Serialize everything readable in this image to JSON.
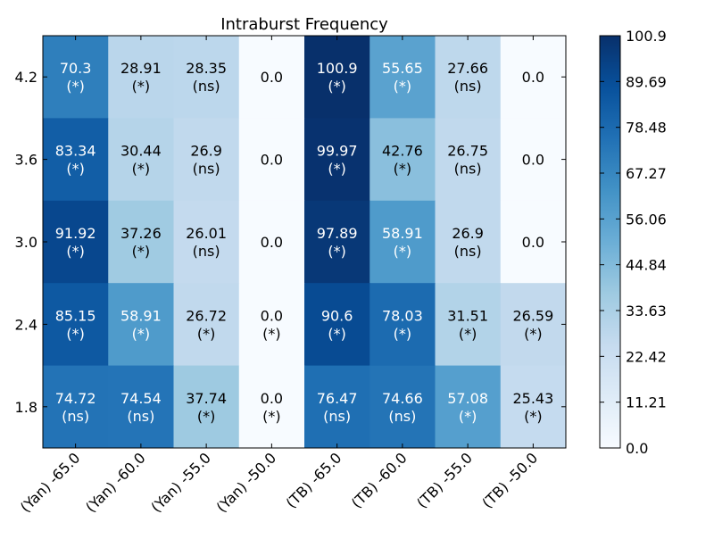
{
  "chart_data": {
    "type": "heatmap",
    "title": "Intraburst Frequency",
    "xlabel": "",
    "ylabel": "",
    "x_categories": [
      "(Yan) -65.0",
      "(Yan) -60.0",
      "(Yan) -55.0",
      "(Yan) -50.0",
      "(TB) -65.0",
      "(TB) -60.0",
      "(TB) -55.0",
      "(TB) -50.0"
    ],
    "y_categories": [
      "4.2",
      "3.6",
      "3.0",
      "2.4",
      "1.8"
    ],
    "values": [
      [
        70.3,
        28.91,
        28.35,
        0.0,
        100.9,
        55.65,
        27.66,
        0.0
      ],
      [
        83.34,
        30.44,
        26.9,
        0.0,
        99.97,
        42.76,
        26.75,
        0.0
      ],
      [
        91.92,
        37.26,
        26.01,
        0.0,
        97.89,
        58.91,
        26.9,
        0.0
      ],
      [
        85.15,
        58.91,
        26.72,
        0.0,
        90.6,
        78.03,
        31.51,
        26.59
      ],
      [
        74.72,
        74.54,
        37.74,
        0.0,
        76.47,
        74.66,
        57.08,
        25.43
      ]
    ],
    "cell_value_labels": [
      [
        "70.3",
        "28.91",
        "28.35",
        "0.0",
        "100.9",
        "55.65",
        "27.66",
        "0.0"
      ],
      [
        "83.34",
        "30.44",
        "26.9",
        "0.0",
        "99.97",
        "42.76",
        "26.75",
        "0.0"
      ],
      [
        "91.92",
        "37.26",
        "26.01",
        "0.0",
        "97.89",
        "58.91",
        "26.9",
        "0.0"
      ],
      [
        "85.15",
        "58.91",
        "26.72",
        "0.0",
        "90.6",
        "78.03",
        "31.51",
        "26.59"
      ],
      [
        "74.72",
        "74.54",
        "37.74",
        "0.0",
        "76.47",
        "74.66",
        "57.08",
        "25.43"
      ]
    ],
    "significance": [
      [
        "(*)",
        "(*)",
        "(ns)",
        "",
        "(*)",
        "(*)",
        "(ns)",
        ""
      ],
      [
        "(*)",
        "(*)",
        "(ns)",
        "",
        "(*)",
        "(*)",
        "(ns)",
        ""
      ],
      [
        "(*)",
        "(*)",
        "(ns)",
        "",
        "(*)",
        "(*)",
        "(ns)",
        ""
      ],
      [
        "(*)",
        "(*)",
        "(*)",
        "(*)",
        "(*)",
        "(*)",
        "(*)",
        "(*)"
      ],
      [
        "(ns)",
        "(ns)",
        "(*)",
        "(*)",
        "(ns)",
        "(ns)",
        "(*)",
        "(*)"
      ]
    ],
    "colorbar": {
      "min": 0.0,
      "max": 100.9,
      "tick_labels": [
        "0.0",
        "11.21",
        "22.42",
        "33.63",
        "44.84",
        "56.06",
        "67.27",
        "78.48",
        "89.69",
        "100.9"
      ],
      "colormap": "Blues",
      "colors": [
        "#f7fbff",
        "#deebf7",
        "#c6dbef",
        "#9ecae1",
        "#6baed6",
        "#4292c6",
        "#2171b5",
        "#08519c",
        "#08306b"
      ]
    },
    "grid": false,
    "legend": "colorbar-right"
  }
}
